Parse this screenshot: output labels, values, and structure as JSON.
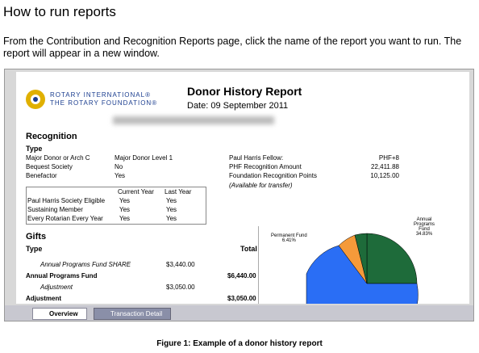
{
  "header": {
    "title": "How to run reports",
    "intro": "From the Contribution and Recognition Reports page, click the name of the report you want to run. The report will appear in a new window."
  },
  "report": {
    "logo": [
      "ROTARY INTERNATIONAL®",
      "THE ROTARY FOUNDATION®"
    ],
    "title": "Donor History Report",
    "date": "Date: 09 September 2011",
    "recognition": {
      "heading": "Recognition",
      "type_heading": "Type",
      "left": [
        [
          "Major Donor or Arch C",
          "Major Donor Level 1"
        ],
        [
          "Bequest Society",
          "No"
        ],
        [
          "Benefactor",
          "Yes"
        ]
      ],
      "right": [
        [
          "Paul Harris Fellow:",
          "PHF+8"
        ],
        [
          "PHF Recognition Amount",
          "22,411.88"
        ],
        [
          "Foundation Recognition Points",
          "10,125.00"
        ]
      ],
      "note": "(Available for transfer)",
      "table": {
        "columns": [
          "Current Year",
          "Last Year"
        ],
        "rows": [
          [
            "Paul Harris Society Eligible",
            "Yes",
            "Yes"
          ],
          [
            "Sustaining Member",
            "Yes",
            "Yes"
          ],
          [
            "Every Rotarian Every Year",
            "Yes",
            "Yes"
          ]
        ]
      }
    },
    "gifts": {
      "heading": "Gifts",
      "type_heading": "Type",
      "total_heading": "Total",
      "rows": [
        [
          "Annual Programs Fund   SHARE",
          "$3,440.00"
        ],
        [
          "Annual Programs Fund",
          "$6,440.00"
        ],
        [
          "Adjustment",
          "$3,050.00"
        ],
        [
          "Adjustment",
          "$3,050.00"
        ]
      ]
    },
    "pie_labels": [
      [
        "Permanent Fund",
        "6.41%"
      ],
      [
        "Annual Programs Fund",
        "34.83%"
      ]
    ],
    "tabs": [
      "Overview",
      "Transaction Detail"
    ]
  },
  "caption": "Figure 1: Example of a donor history report"
}
